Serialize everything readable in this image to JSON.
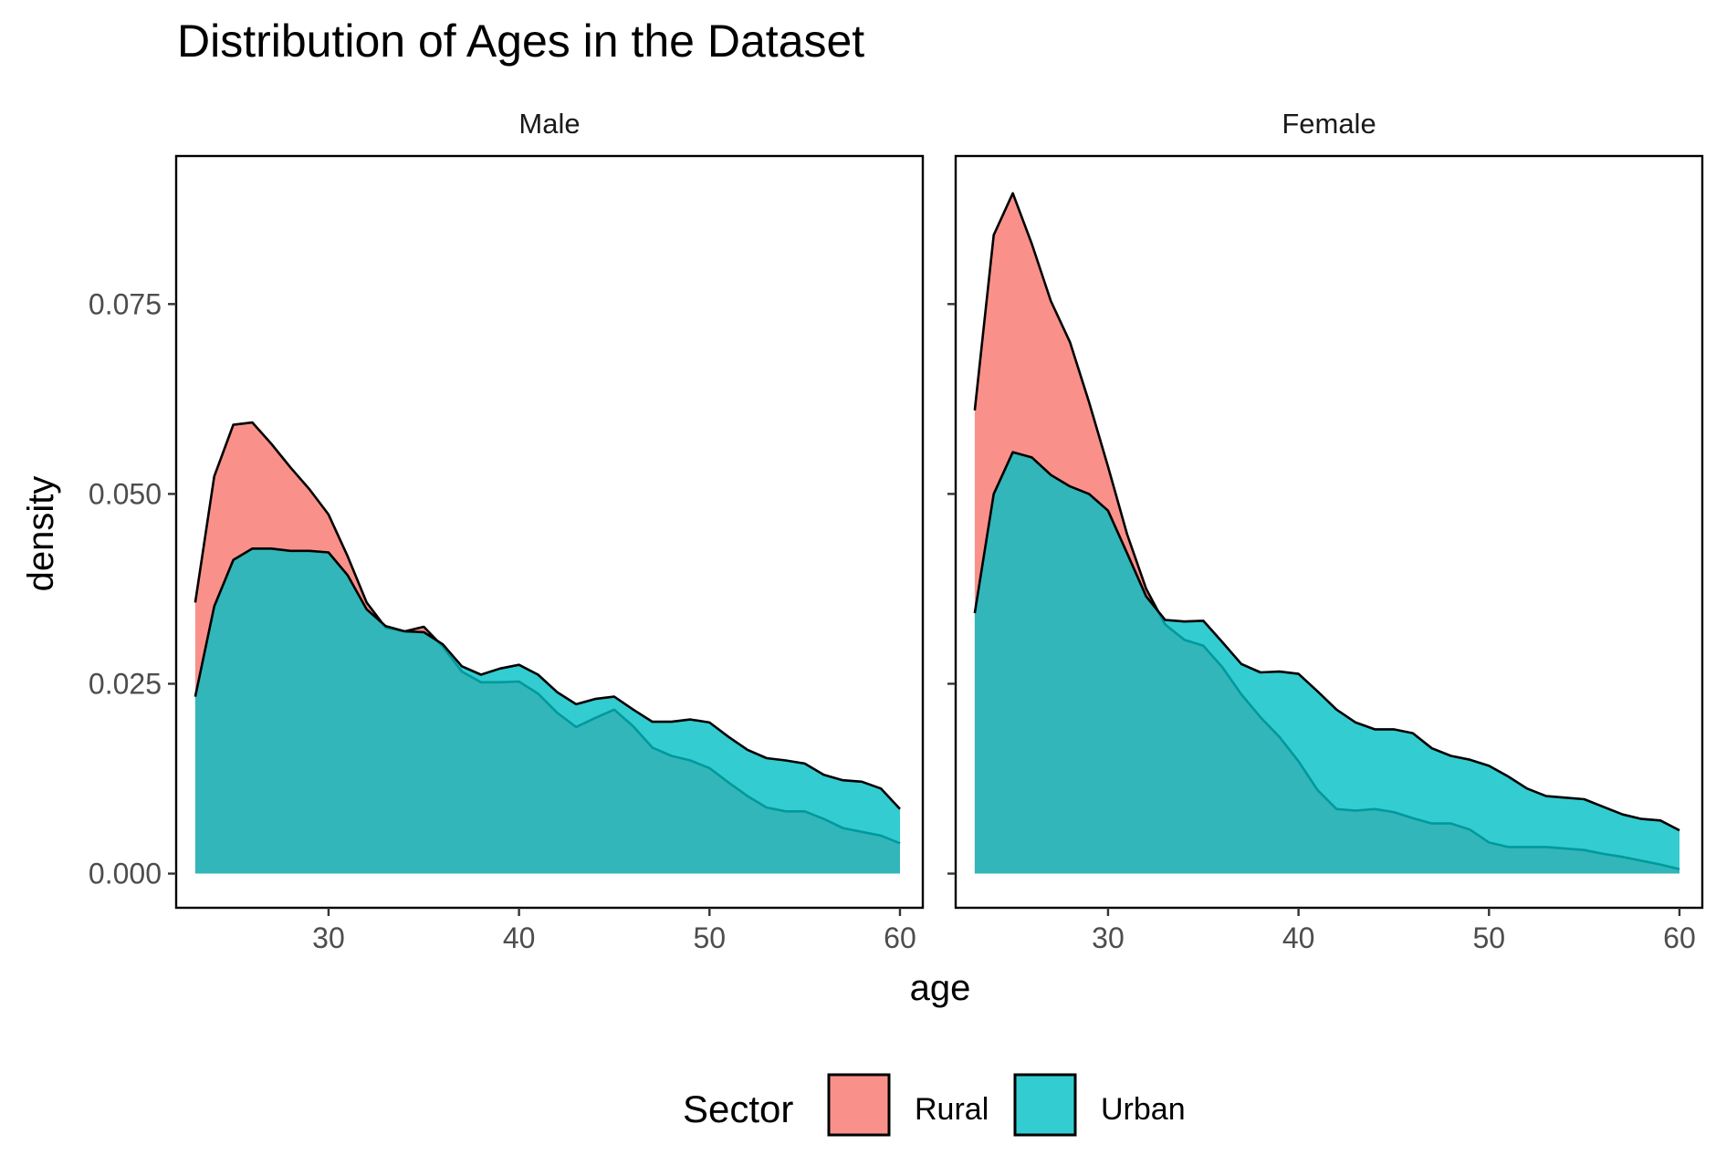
{
  "chart_data": {
    "type": "area",
    "title": "Distribution of Ages in the Dataset",
    "xlabel": "age",
    "ylabel": "density",
    "xlim": [
      22,
      61.2
    ],
    "ylim": [
      -0.0045,
      0.0945
    ],
    "x_ticks": [
      30,
      40,
      50,
      60
    ],
    "x_tick_labels": [
      "30",
      "40",
      "50",
      "60"
    ],
    "y_ticks": [
      0,
      0.025,
      0.05,
      0.075
    ],
    "y_tick_labels": [
      "0.000",
      "0.025",
      "0.050",
      "0.075"
    ],
    "grid": false,
    "legend": {
      "title": "Sector",
      "placement": "bottom",
      "entries": [
        {
          "label": "Rural",
          "color": "#F8766D"
        },
        {
          "label": "Urban",
          "color": "#00BFC4"
        }
      ]
    },
    "colors": {
      "Rural": "#F8766D",
      "Urban": "#00BFC4",
      "fill_alpha": 0.8,
      "outline": "#000000"
    },
    "panels": [
      {
        "label": "Male",
        "series": [
          {
            "name": "Rural",
            "x": [
              23,
              24,
              25,
              26,
              27,
              28,
              29,
              30,
              31,
              32,
              33,
              34,
              35,
              36,
              37,
              38,
              39,
              40,
              41,
              42,
              43,
              44,
              45,
              46,
              47,
              48,
              49,
              50,
              51,
              52,
              53,
              54,
              55,
              56,
              57,
              58,
              59,
              60
            ],
            "y": [
              0.0357,
              0.0523,
              0.0591,
              0.0594,
              0.0566,
              0.0535,
              0.0506,
              0.0473,
              0.0418,
              0.0357,
              0.0324,
              0.0319,
              0.0325,
              0.0299,
              0.0266,
              0.0252,
              0.0252,
              0.0253,
              0.0237,
              0.0212,
              0.0193,
              0.0205,
              0.0216,
              0.0194,
              0.0166,
              0.0155,
              0.0149,
              0.0139,
              0.012,
              0.0102,
              0.0087,
              0.0082,
              0.0082,
              0.0072,
              0.006,
              0.0055,
              0.005,
              0.004
            ]
          },
          {
            "name": "Urban",
            "x": [
              23,
              24,
              25,
              26,
              27,
              28,
              29,
              30,
              31,
              32,
              33,
              34,
              35,
              36,
              37,
              38,
              39,
              40,
              41,
              42,
              43,
              44,
              45,
              46,
              47,
              48,
              49,
              50,
              51,
              52,
              53,
              54,
              55,
              56,
              57,
              58,
              59,
              60
            ],
            "y": [
              0.0233,
              0.0352,
              0.0413,
              0.0428,
              0.0428,
              0.0425,
              0.0425,
              0.0423,
              0.0393,
              0.0348,
              0.0326,
              0.0319,
              0.0318,
              0.0302,
              0.0273,
              0.0262,
              0.027,
              0.0275,
              0.0262,
              0.0239,
              0.0223,
              0.023,
              0.0233,
              0.0216,
              0.02,
              0.02,
              0.0203,
              0.0199,
              0.018,
              0.0163,
              0.0152,
              0.0149,
              0.0145,
              0.013,
              0.0123,
              0.0121,
              0.0112,
              0.0085
            ]
          }
        ]
      },
      {
        "label": "Female",
        "series": [
          {
            "name": "Rural",
            "x": [
              23,
              24,
              25,
              26,
              27,
              28,
              29,
              30,
              31,
              32,
              33,
              34,
              35,
              36,
              37,
              38,
              39,
              40,
              41,
              42,
              43,
              44,
              45,
              46,
              47,
              48,
              49,
              50,
              51,
              52,
              53,
              54,
              55,
              56,
              57,
              58,
              59,
              60
            ],
            "y": [
              0.061,
              0.0841,
              0.0896,
              0.0829,
              0.0754,
              0.07,
              0.0621,
              0.0536,
              0.0447,
              0.0375,
              0.0328,
              0.0308,
              0.03,
              0.0272,
              0.0236,
              0.0206,
              0.018,
              0.0148,
              0.011,
              0.0085,
              0.0083,
              0.0085,
              0.0081,
              0.0073,
              0.0066,
              0.0066,
              0.0058,
              0.0041,
              0.0035,
              0.0035,
              0.0035,
              0.0033,
              0.0031,
              0.0026,
              0.0022,
              0.0017,
              0.0012,
              0.0006
            ]
          },
          {
            "name": "Urban",
            "x": [
              23,
              24,
              25,
              26,
              27,
              28,
              29,
              30,
              31,
              32,
              33,
              34,
              35,
              36,
              37,
              38,
              39,
              40,
              41,
              42,
              43,
              44,
              45,
              46,
              47,
              48,
              49,
              50,
              51,
              52,
              53,
              54,
              55,
              56,
              57,
              58,
              59,
              60
            ],
            "y": [
              0.0343,
              0.05,
              0.0555,
              0.0548,
              0.0525,
              0.051,
              0.05,
              0.0478,
              0.0422,
              0.0365,
              0.0334,
              0.0332,
              0.0333,
              0.0305,
              0.0276,
              0.0265,
              0.0266,
              0.0263,
              0.024,
              0.0216,
              0.0199,
              0.019,
              0.019,
              0.0185,
              0.0165,
              0.0155,
              0.015,
              0.0142,
              0.0128,
              0.0112,
              0.0102,
              0.01,
              0.0098,
              0.0088,
              0.0078,
              0.0072,
              0.007,
              0.0057
            ]
          }
        ]
      }
    ]
  }
}
